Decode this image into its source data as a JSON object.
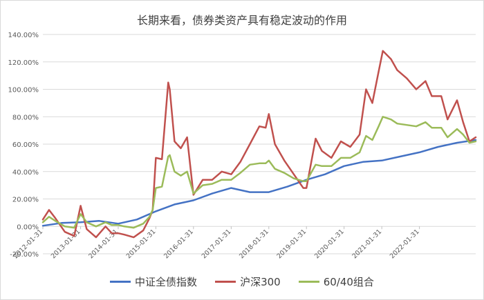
{
  "chart_data": {
    "type": "line",
    "title": "长期来看，债券类资产具有稳定波动的作用",
    "xlabel": "",
    "ylabel": "",
    "ylim": [
      -20,
      140
    ],
    "y_ticks": [
      "-20.00%",
      "0.00%",
      "20.00%",
      "40.00%",
      "60.00%",
      "80.00%",
      "100.00%",
      "120.00%",
      "140.00%"
    ],
    "x_ticks": [
      "2012-01-31",
      "2013-01-31",
      "2014-01-31",
      "2015-01-31",
      "2016-01-31",
      "2017-01-31",
      "2018-01-31",
      "2019-01-31",
      "2020-01-31",
      "2021-01-31",
      "2022-01-31"
    ],
    "x_range": [
      "2012-01-31",
      "2023-07-31"
    ],
    "grid": true,
    "legend_position": "bottom",
    "series": [
      {
        "name": "中证全债指数",
        "color": "#4472C4",
        "x": [
          "2012-01-31",
          "2012-07-31",
          "2013-01-31",
          "2013-07-31",
          "2014-01-31",
          "2014-07-31",
          "2015-01-31",
          "2015-07-31",
          "2016-01-31",
          "2016-07-31",
          "2017-01-31",
          "2017-07-31",
          "2018-01-31",
          "2018-07-31",
          "2019-01-31",
          "2019-07-31",
          "2020-01-31",
          "2020-07-31",
          "2021-01-31",
          "2021-07-31",
          "2022-01-31",
          "2022-07-31",
          "2023-01-31",
          "2023-07-31"
        ],
        "values": [
          0.5,
          2.5,
          3,
          4,
          2,
          5,
          11,
          16,
          19,
          24,
          28,
          25,
          25,
          29,
          34,
          38,
          44,
          47,
          48,
          51,
          54,
          58,
          61,
          63
        ]
      },
      {
        "name": "沪深300",
        "color": "#C0504D",
        "x": [
          "2012-01-31",
          "2012-03-31",
          "2012-05-31",
          "2012-08-31",
          "2012-11-30",
          "2013-01-31",
          "2013-03-31",
          "2013-06-30",
          "2013-09-30",
          "2013-11-30",
          "2014-01-31",
          "2014-03-31",
          "2014-06-30",
          "2014-09-30",
          "2014-11-30",
          "2014-12-31",
          "2015-01-31",
          "2015-03-31",
          "2015-05-31",
          "2015-06-15",
          "2015-07-31",
          "2015-09-30",
          "2015-11-30",
          "2016-01-31",
          "2016-04-30",
          "2016-07-31",
          "2016-10-31",
          "2017-01-31",
          "2017-04-30",
          "2017-07-31",
          "2017-10-31",
          "2017-12-31",
          "2018-01-31",
          "2018-03-31",
          "2018-06-30",
          "2018-09-30",
          "2018-12-31",
          "2019-01-31",
          "2019-04-30",
          "2019-06-30",
          "2019-09-30",
          "2019-12-31",
          "2020-03-31",
          "2020-06-30",
          "2020-08-31",
          "2020-10-31",
          "2020-12-31",
          "2021-02-10",
          "2021-04-30",
          "2021-06-30",
          "2021-09-30",
          "2021-12-31",
          "2022-03-31",
          "2022-05-31",
          "2022-08-31",
          "2022-10-31",
          "2023-01-31",
          "2023-03-31",
          "2023-05-31",
          "2023-07-31"
        ],
        "values": [
          5,
          12,
          6,
          -4,
          -7,
          15,
          -2,
          -8,
          0,
          -5,
          -5,
          -6,
          -8,
          -3,
          6,
          12,
          50,
          49,
          105,
          100,
          62,
          57,
          65,
          23,
          34,
          34,
          40,
          38,
          47,
          60,
          73,
          72,
          82,
          60,
          48,
          38,
          28,
          28,
          64,
          55,
          50,
          62,
          58,
          67,
          100,
          90,
          113,
          128,
          122,
          114,
          108,
          100,
          106,
          95,
          95,
          78,
          92,
          76,
          62,
          65
        ]
      },
      {
        "name": "60/40组合",
        "color": "#9BBB59",
        "x": [
          "2012-01-31",
          "2012-03-31",
          "2012-05-31",
          "2012-08-31",
          "2012-11-30",
          "2013-01-31",
          "2013-03-31",
          "2013-06-30",
          "2013-09-30",
          "2013-11-30",
          "2014-01-31",
          "2014-03-31",
          "2014-06-30",
          "2014-09-30",
          "2014-11-30",
          "2014-12-31",
          "2015-01-31",
          "2015-03-31",
          "2015-05-31",
          "2015-06-15",
          "2015-07-31",
          "2015-09-30",
          "2015-11-30",
          "2016-01-31",
          "2016-04-30",
          "2016-07-31",
          "2016-10-31",
          "2017-01-31",
          "2017-04-30",
          "2017-07-31",
          "2017-10-31",
          "2017-12-31",
          "2018-01-31",
          "2018-03-31",
          "2018-06-30",
          "2018-09-30",
          "2018-12-31",
          "2019-01-31",
          "2019-04-30",
          "2019-06-30",
          "2019-09-30",
          "2019-12-31",
          "2020-03-31",
          "2020-06-30",
          "2020-08-31",
          "2020-10-31",
          "2020-12-31",
          "2021-02-10",
          "2021-04-30",
          "2021-06-30",
          "2021-09-30",
          "2021-12-31",
          "2022-03-31",
          "2022-05-31",
          "2022-08-31",
          "2022-10-31",
          "2023-01-31",
          "2023-03-31",
          "2023-05-31",
          "2023-07-31"
        ],
        "values": [
          3,
          7,
          4,
          0,
          -1,
          9,
          3,
          0,
          3,
          1,
          1,
          0,
          -1,
          2,
          7,
          12,
          28,
          29,
          51,
          52,
          40,
          37,
          40,
          24,
          30,
          31,
          34,
          34,
          39,
          45,
          46,
          46,
          48,
          42,
          39,
          35,
          33,
          33,
          45,
          44,
          44,
          50,
          50,
          54,
          66,
          63,
          73,
          80,
          78,
          75,
          74,
          73,
          76,
          72,
          72,
          65,
          71,
          67,
          61,
          62
        ]
      }
    ]
  }
}
